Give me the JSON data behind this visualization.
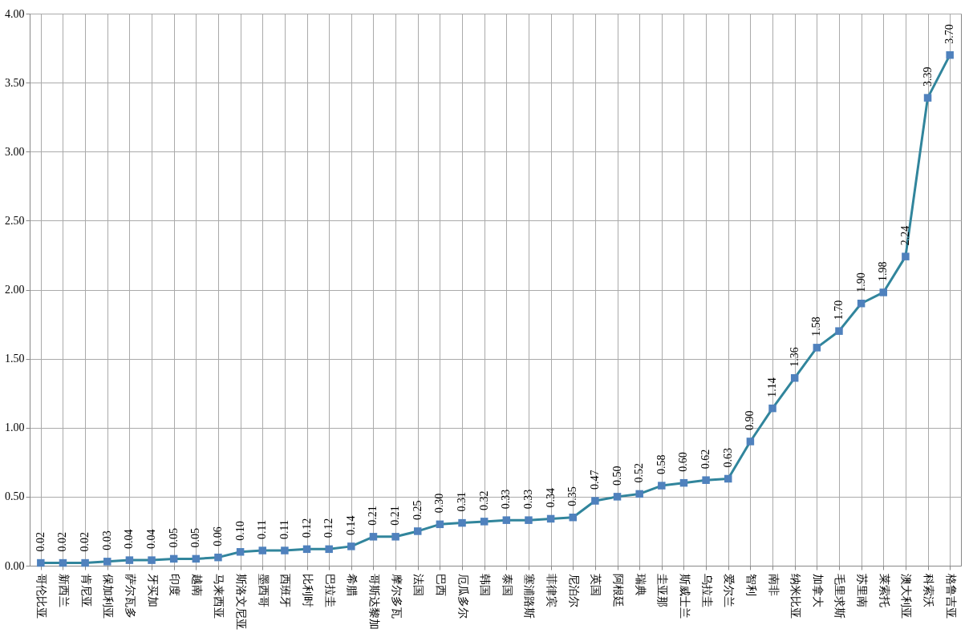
{
  "chart_data": {
    "type": "line",
    "categories": [
      "哥伦比亚",
      "新西兰",
      "肯尼亚",
      "保加利亚",
      "萨尔瓦多",
      "牙买加",
      "印度",
      "越南",
      "马来西亚",
      "斯洛文尼亚",
      "墨西哥",
      "西班牙",
      "比利时",
      "巴拉圭",
      "希腊",
      "哥斯达黎加",
      "摩尔多瓦",
      "法国",
      "巴西",
      "厄瓜多尔",
      "韩国",
      "泰国",
      "塞浦路斯",
      "菲律宾",
      "尼泊尔",
      "英国",
      "阿根廷",
      "瑞典",
      "圭亚那",
      "斯威士兰",
      "乌拉圭",
      "爱尔兰",
      "智利",
      "南非",
      "纳米比亚",
      "加拿大",
      "毛里求斯",
      "苏里南",
      "莱索托",
      "澳大利亚",
      "科索沃",
      "格鲁吉亚"
    ],
    "series": [
      {
        "color": "#31859c",
        "values": [
          0.02,
          0.02,
          0.02,
          0.03,
          0.04,
          0.04,
          0.05,
          0.05,
          0.06,
          0.1,
          0.11,
          0.11,
          0.12,
          0.12,
          0.14,
          0.21,
          0.21,
          0.25,
          0.3,
          0.31,
          0.32,
          0.33,
          0.33,
          0.34,
          0.35,
          0.47,
          0.5,
          0.52,
          0.58,
          0.6,
          0.62,
          0.63,
          0.9,
          1.14,
          1.36,
          1.58,
          1.7,
          1.9,
          1.98,
          2.24,
          3.39,
          3.7
        ],
        "value_labels": [
          "0.02",
          "0.02",
          "0.02",
          "0.03",
          "0.04",
          "0.04",
          "0.05",
          "0.05",
          "0.06",
          "0.10",
          "0.11",
          "0.11",
          "0.12",
          "0.12",
          "0.14",
          "0.21",
          "0.21",
          "0.25",
          "0.30",
          "0.31",
          "0.32",
          "0.33",
          "0.33",
          "0.34",
          "0.35",
          "0.47",
          "0.50",
          "0.52",
          "0.58",
          "0.60",
          "0.62",
          "0.63",
          "0.90",
          "1.14",
          "1.36",
          "1.58",
          "1.70",
          "1.90",
          "1.98",
          "2.24",
          "3.39",
          "3.70"
        ]
      }
    ],
    "ylim": [
      0,
      4
    ],
    "yticks": [
      {
        "value": 0,
        "label": "0.00"
      },
      {
        "value": 0.5,
        "label": "0.50"
      },
      {
        "value": 1,
        "label": "1.00"
      },
      {
        "value": 1.5,
        "label": "1.50"
      },
      {
        "value": 2,
        "label": "2.00"
      },
      {
        "value": 2.5,
        "label": "2.50"
      },
      {
        "value": 3,
        "label": "3.00"
      },
      {
        "value": 3.5,
        "label": "3.50"
      },
      {
        "value": 4,
        "label": "4.00"
      }
    ],
    "grid": true,
    "marker": "square",
    "line_style": "solid"
  }
}
